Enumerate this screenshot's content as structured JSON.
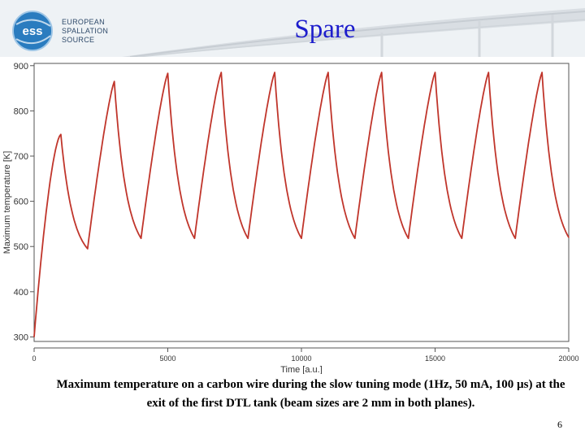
{
  "slide": {
    "title": "Spare",
    "logo": {
      "mark": "ess",
      "lines": [
        "EUROPEAN",
        "SPALLATION",
        "SOURCE"
      ]
    },
    "caption": "Maximum temperature on a carbon wire during the slow tuning mode (1Hz, 50 mA, 100 µs) at the exit of the first DTL tank (beam sizes are 2 mm in both planes).",
    "page_number": "6"
  },
  "colors": {
    "title": "#1d1dcc",
    "line": "#c0352b",
    "logo_blue": "#1f6fae",
    "axis": "#333333"
  },
  "chart_data": {
    "type": "line",
    "title": "",
    "xlabel": "Time [a.u.]",
    "ylabel": "Maximum temperature [K]",
    "xlim": [
      0,
      20000
    ],
    "ylim": [
      290,
      905
    ],
    "xticks": [
      0,
      5000,
      10000,
      15000,
      20000
    ],
    "yticks": [
      300,
      400,
      500,
      600,
      700,
      800,
      900
    ],
    "grid": false,
    "legend": "none",
    "series": [
      {
        "x": [
          0,
          1000,
          2000,
          3000,
          4000,
          5000,
          6000,
          7000,
          8000,
          9000,
          10000,
          11000,
          12000,
          13000,
          14000,
          15000,
          16000,
          17000,
          18000,
          19000,
          20000
        ],
        "y": [
          300,
          748,
          495,
          865,
          518,
          883,
          518,
          885,
          518,
          885,
          518,
          885,
          518,
          885,
          518,
          885,
          518,
          885,
          518,
          885,
          520
        ]
      }
    ]
  }
}
